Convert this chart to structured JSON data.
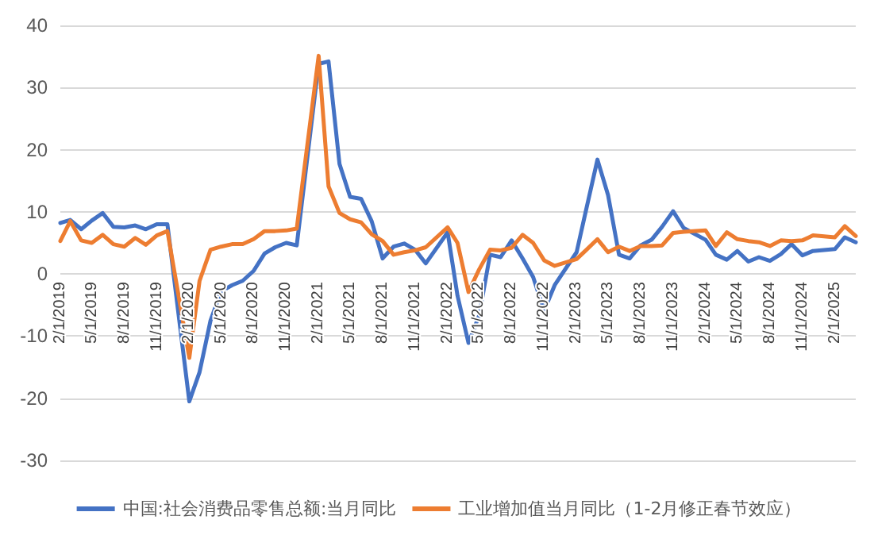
{
  "chart_data": {
    "type": "line",
    "x": [
      "2019-02",
      "2019-03",
      "2019-04",
      "2019-05",
      "2019-06",
      "2019-07",
      "2019-08",
      "2019-09",
      "2019-10",
      "2019-11",
      "2019-12",
      "2020-02",
      "2020-03",
      "2020-04",
      "2020-05",
      "2020-06",
      "2020-07",
      "2020-08",
      "2020-09",
      "2020-10",
      "2020-11",
      "2020-12",
      "2021-02",
      "2021-03",
      "2021-04",
      "2021-05",
      "2021-06",
      "2021-07",
      "2021-08",
      "2021-09",
      "2021-10",
      "2021-11",
      "2021-12",
      "2022-02",
      "2022-03",
      "2022-04",
      "2022-05",
      "2022-06",
      "2022-07",
      "2022-08",
      "2022-09",
      "2022-10",
      "2022-11",
      "2022-12",
      "2023-02",
      "2023-03",
      "2023-04",
      "2023-05",
      "2023-06",
      "2023-07",
      "2023-08",
      "2023-09",
      "2023-10",
      "2023-11",
      "2023-12",
      "2024-02",
      "2024-03",
      "2024-04",
      "2024-05",
      "2024-06",
      "2024-07",
      "2024-08",
      "2024-09",
      "2024-10",
      "2024-11",
      "2024-12",
      "2025-02",
      "2025-03",
      "2025-04"
    ],
    "series": [
      {
        "name": "中国:社会消费品零售总额:当月同比",
        "color": "#4472c4",
        "values": [
          8.2,
          8.7,
          7.2,
          8.6,
          9.8,
          7.6,
          7.5,
          7.8,
          7.2,
          8.0,
          8.0,
          -20.5,
          -15.8,
          -7.5,
          -2.8,
          -1.8,
          -1.1,
          0.5,
          3.3,
          4.3,
          5.0,
          4.6,
          33.8,
          34.2,
          17.7,
          12.4,
          12.1,
          8.5,
          2.5,
          4.4,
          4.9,
          3.9,
          1.7,
          6.7,
          -3.5,
          -11.1,
          -6.7,
          3.1,
          2.7,
          5.4,
          2.5,
          -0.5,
          -5.9,
          -1.8,
          3.5,
          10.6,
          18.4,
          12.7,
          3.1,
          2.5,
          4.6,
          5.5,
          7.6,
          10.1,
          7.4,
          5.5,
          3.1,
          2.3,
          3.7,
          2.0,
          2.7,
          2.1,
          3.2,
          4.8,
          3.0,
          3.7,
          4.0,
          5.9,
          5.1
        ]
      },
      {
        "name": "工业增加值当月同比（1-2月修正春节效应）",
        "color": "#ed7d31",
        "values": [
          5.3,
          8.5,
          5.4,
          5.0,
          6.3,
          4.8,
          4.4,
          5.8,
          4.7,
          6.2,
          6.9,
          -13.5,
          -1.1,
          3.9,
          4.4,
          4.8,
          4.8,
          5.6,
          6.9,
          6.9,
          7.0,
          7.3,
          35.1,
          14.1,
          9.8,
          8.8,
          8.3,
          6.4,
          5.3,
          3.1,
          3.5,
          3.8,
          4.3,
          7.5,
          5.0,
          -2.9,
          0.7,
          3.9,
          3.8,
          4.2,
          6.3,
          5.0,
          2.2,
          1.3,
          2.4,
          3.9,
          5.6,
          3.5,
          4.4,
          3.7,
          4.5,
          4.5,
          4.6,
          6.6,
          6.8,
          7.0,
          4.5,
          6.7,
          5.6,
          5.3,
          5.1,
          4.5,
          5.4,
          5.3,
          5.4,
          6.2,
          5.9,
          7.7,
          6.1
        ]
      }
    ],
    "xlim": [
      "2019-02",
      "2025-04"
    ],
    "xticks": [
      {
        "value": "2019-02",
        "label": "2/1/2019"
      },
      {
        "value": "2019-05",
        "label": "5/1/2019"
      },
      {
        "value": "2019-08",
        "label": "8/1/2019"
      },
      {
        "value": "2019-11",
        "label": "11/1/2019"
      },
      {
        "value": "2020-02",
        "label": "2/1/2020"
      },
      {
        "value": "2020-05",
        "label": "5/1/2020"
      },
      {
        "value": "2020-08",
        "label": "8/1/2020"
      },
      {
        "value": "2020-11",
        "label": "11/1/2020"
      },
      {
        "value": "2021-02",
        "label": "2/1/2021"
      },
      {
        "value": "2021-05",
        "label": "5/1/2021"
      },
      {
        "value": "2021-08",
        "label": "8/1/2021"
      },
      {
        "value": "2021-11",
        "label": "11/1/2021"
      },
      {
        "value": "2022-02",
        "label": "2/1/2022"
      },
      {
        "value": "2022-05",
        "label": "5/1/2022"
      },
      {
        "value": "2022-08",
        "label": "8/1/2022"
      },
      {
        "value": "2022-11",
        "label": "11/1/2022"
      },
      {
        "value": "2023-02",
        "label": "2/1/2023"
      },
      {
        "value": "2023-05",
        "label": "5/1/2023"
      },
      {
        "value": "2023-08",
        "label": "8/1/2023"
      },
      {
        "value": "2023-11",
        "label": "11/1/2023"
      },
      {
        "value": "2024-02",
        "label": "2/1/2024"
      },
      {
        "value": "2024-05",
        "label": "5/1/2024"
      },
      {
        "value": "2024-08",
        "label": "8/1/2024"
      },
      {
        "value": "2024-11",
        "label": "11/1/2024"
      },
      {
        "value": "2025-02",
        "label": "2/1/2025"
      }
    ],
    "ylim": [
      -30,
      40
    ],
    "yticks": [
      -30,
      -20,
      -10,
      0,
      10,
      20,
      30,
      40
    ],
    "grid": "y",
    "legend": "bottom",
    "marker": "none",
    "line_style": "solid"
  }
}
